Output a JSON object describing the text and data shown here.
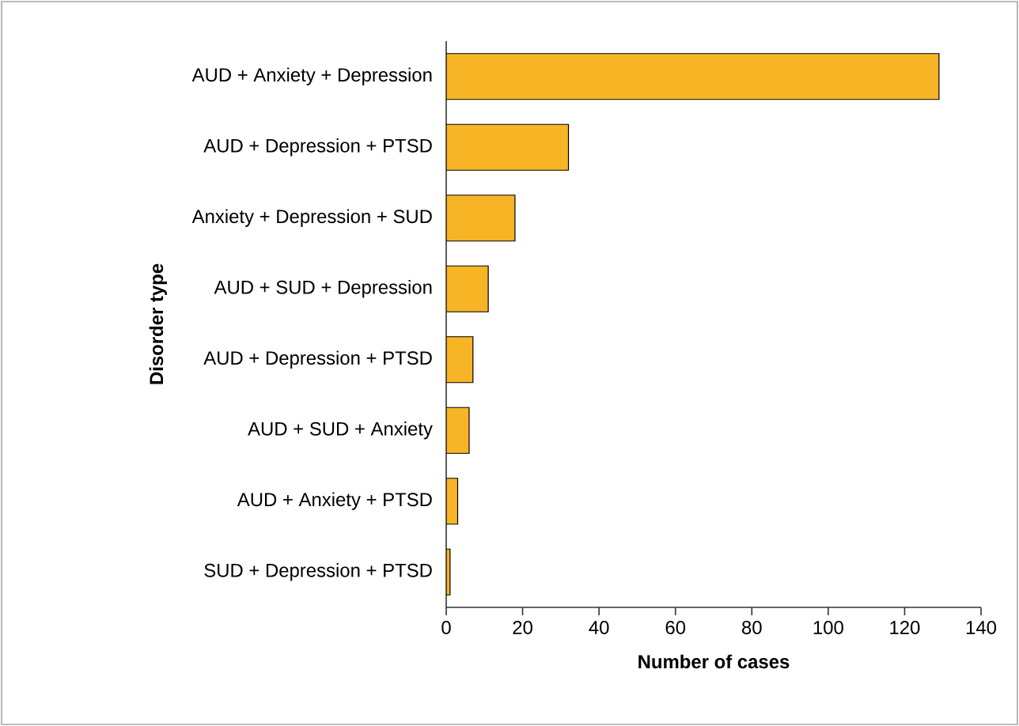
{
  "chart_data": {
    "type": "bar",
    "orientation": "horizontal",
    "xlabel": "Number of cases",
    "ylabel": "Disorder type",
    "categories": [
      "AUD + Anxiety + Depression",
      "AUD + Depression + PTSD",
      "Anxiety + Depression + SUD",
      "AUD + SUD + Depression",
      "AUD + Depression + PTSD",
      "AUD + SUD + Anxiety",
      "AUD + Anxiety + PTSD",
      "SUD + Depression + PTSD"
    ],
    "values": [
      129,
      32,
      18,
      11,
      7,
      6,
      3,
      1
    ],
    "color": "#f7b526",
    "xlim": [
      0,
      140
    ],
    "xticks": [
      0,
      20,
      40,
      60,
      80,
      100,
      120,
      140
    ],
    "grid": false
  }
}
